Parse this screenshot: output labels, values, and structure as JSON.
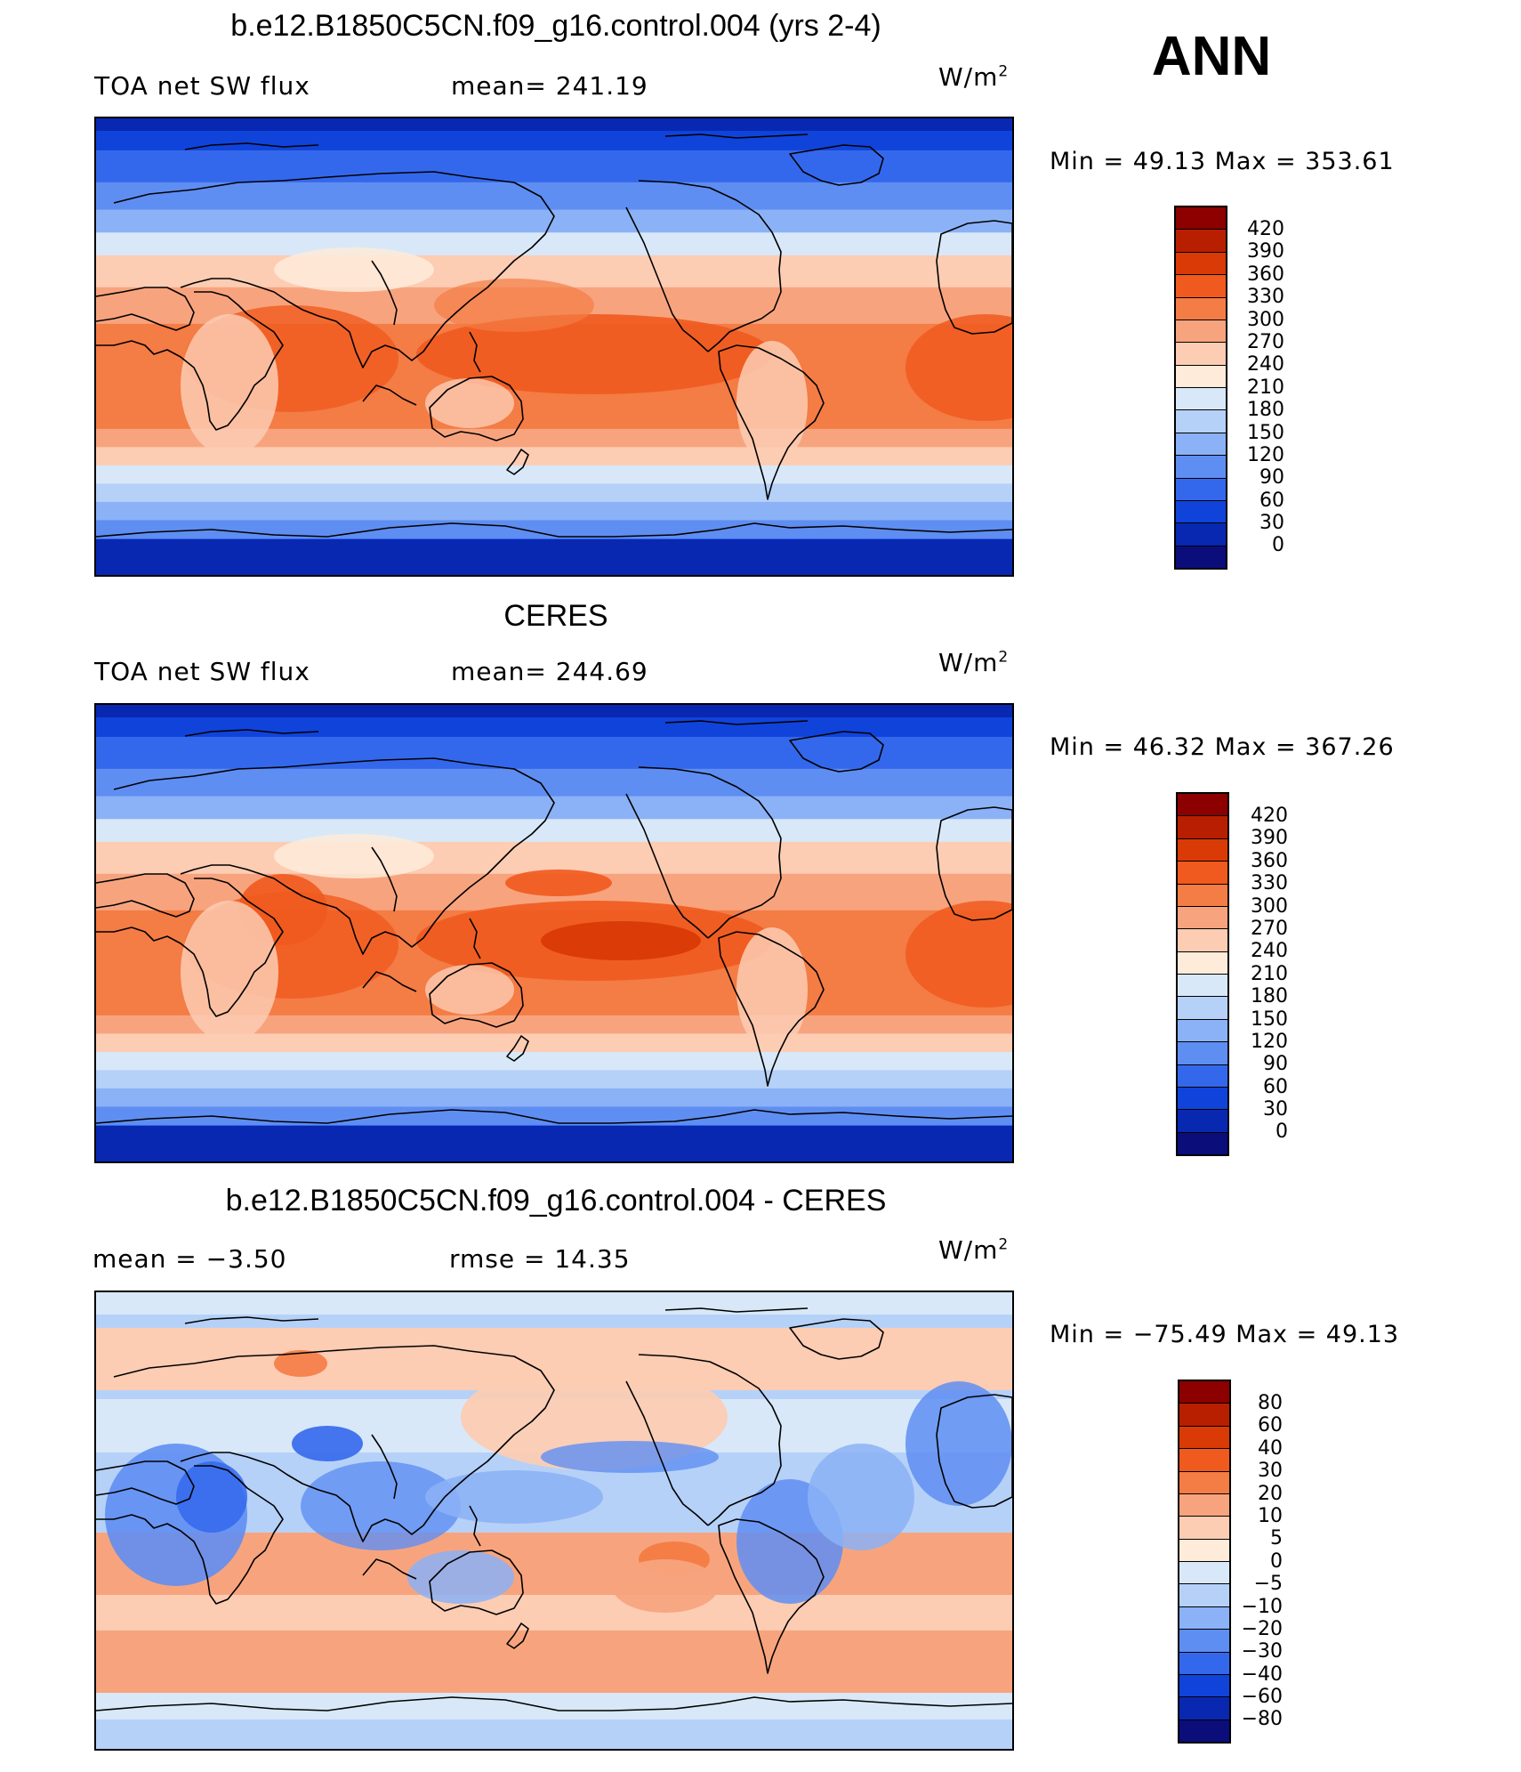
{
  "season": "ANN",
  "units": "W/m",
  "units_sup": "2",
  "panels": [
    {
      "title": "b.e12.B1850C5CN.f09_g16.control.004 (yrs 2-4)",
      "left_label": "TOA net SW flux",
      "center_label": "mean= 241.19",
      "minmax": "Min =   49.13 Max = 353.61",
      "scale": "abs"
    },
    {
      "title": "CERES",
      "left_label": "TOA net SW flux",
      "center_label": "mean= 244.69",
      "minmax": "Min =   46.32 Max = 367.26",
      "scale": "abs"
    },
    {
      "title": "b.e12.B1850C5CN.f09_g16.control.004 - CERES",
      "left_label": "mean =   −3.50",
      "center_label": "rmse =   14.35",
      "minmax": "Min = −75.49 Max =   49.13",
      "scale": "diff"
    }
  ],
  "colorbars": {
    "abs": {
      "levels": [
        "420",
        "390",
        "360",
        "330",
        "300",
        "270",
        "240",
        "210",
        "180",
        "150",
        "120",
        "90",
        "60",
        "30",
        "0"
      ],
      "colors": [
        "#8c0000",
        "#b81f00",
        "#d93a06",
        "#f05a1e",
        "#f47c45",
        "#f7a47e",
        "#fcccb3",
        "#feebd9",
        "#d8e8f8",
        "#b6d1f8",
        "#8bb2f6",
        "#5f8ef2",
        "#3468ec",
        "#1043da",
        "#0828b2",
        "#0a0d7a"
      ]
    },
    "diff": {
      "levels": [
        "80",
        "60",
        "40",
        "30",
        "20",
        "10",
        "5",
        "0",
        "−5",
        "−10",
        "−20",
        "−30",
        "−40",
        "−60",
        "−80"
      ],
      "colors": [
        "#8c0000",
        "#b81f00",
        "#d93a06",
        "#f05a1e",
        "#f47c45",
        "#f7a47e",
        "#fcccb3",
        "#feebd9",
        "#d8e8f8",
        "#b6d1f8",
        "#8bb2f6",
        "#5f8ef2",
        "#3468ec",
        "#1043da",
        "#0828b2",
        "#0a0d7a"
      ]
    }
  }
}
